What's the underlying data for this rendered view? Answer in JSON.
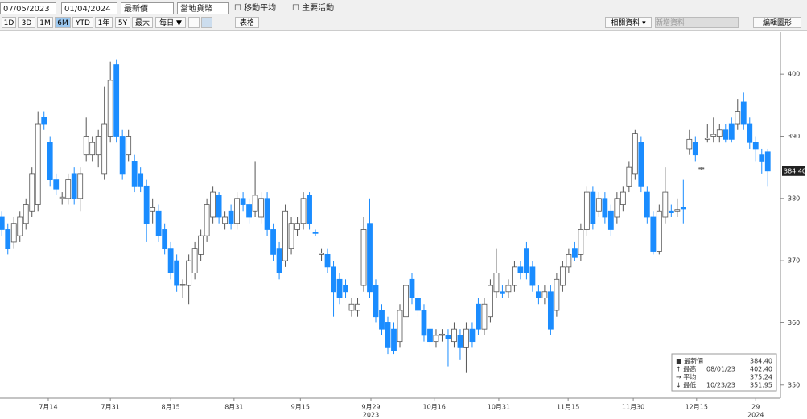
{
  "toolbar": {
    "start": "07/05/2023",
    "end": "01/04/2024",
    "price": "最新價",
    "currency": "當地貨幣",
    "moving_average": "移動平均",
    "events": "主要活動",
    "ranges": [
      "1D",
      "3D",
      "1M",
      "6M",
      "YTD",
      "1年",
      "5Y",
      "最大"
    ],
    "frequency": "每日 ▼",
    "table": "表格",
    "related": "相關資料 ▾",
    "add": "新增資料",
    "edit": "編輯圖形"
  },
  "chart_data": {
    "type": "candlestick",
    "up_color": "#ffffff",
    "down_color": "#1a8cff",
    "candles": [
      [
        377,
        378,
        374,
        375
      ],
      [
        375,
        376,
        371,
        372
      ],
      [
        373,
        377,
        372,
        376
      ],
      [
        374,
        378,
        373,
        377
      ],
      [
        376,
        380,
        375,
        379
      ],
      [
        378,
        385,
        377,
        384
      ],
      [
        379,
        394,
        378,
        392
      ],
      [
        393,
        394,
        391,
        392
      ],
      [
        389,
        390,
        382,
        383
      ],
      [
        383,
        384,
        380.5,
        381.5
      ],
      [
        380,
        381,
        379,
        380.2
      ],
      [
        380,
        384,
        379,
        383
      ],
      [
        384,
        385,
        379,
        380
      ],
      [
        380,
        385,
        378,
        384
      ],
      [
        387,
        393,
        386,
        390
      ],
      [
        387,
        390,
        386,
        389
      ],
      [
        387,
        391,
        385,
        390
      ],
      [
        384,
        398,
        383,
        392
      ],
      [
        390,
        402,
        389,
        399
      ],
      [
        401.5,
        402.4,
        389,
        390
      ],
      [
        390,
        391,
        383,
        384
      ],
      [
        387,
        391,
        386,
        390
      ],
      [
        386,
        387,
        381,
        382
      ],
      [
        384,
        385,
        381,
        382
      ],
      [
        382,
        383,
        373,
        376
      ],
      [
        378,
        380,
        376,
        378.5
      ],
      [
        378,
        379,
        373,
        374
      ],
      [
        375,
        376,
        371,
        372
      ],
      [
        372,
        373,
        367,
        368
      ],
      [
        370,
        371,
        365,
        366
      ],
      [
        366,
        367,
        364,
        366.2
      ],
      [
        366,
        371,
        363,
        370
      ],
      [
        368,
        373,
        367,
        372
      ],
      [
        371,
        375,
        370,
        374
      ],
      [
        374,
        380,
        373,
        379
      ],
      [
        377,
        382,
        376,
        381
      ],
      [
        380.5,
        381,
        376,
        377
      ],
      [
        376,
        378,
        375,
        377
      ],
      [
        378,
        379,
        375,
        376
      ],
      [
        376,
        381,
        375,
        380
      ],
      [
        380,
        381,
        378,
        379
      ],
      [
        379,
        380,
        376,
        377
      ],
      [
        378,
        386,
        377,
        380.5
      ],
      [
        377,
        381,
        376,
        380
      ],
      [
        380,
        381,
        374,
        375
      ],
      [
        375,
        376,
        370,
        371
      ],
      [
        372,
        373,
        367,
        368
      ],
      [
        370,
        379,
        369,
        378
      ],
      [
        372,
        377,
        371,
        376
      ],
      [
        375,
        377,
        374,
        376
      ],
      [
        376,
        381,
        375,
        380
      ],
      [
        380.5,
        381,
        375,
        376
      ],
      [
        374.5,
        375,
        374,
        374.4
      ],
      [
        371,
        372,
        370,
        371.2
      ],
      [
        371,
        372,
        368,
        369
      ],
      [
        369,
        370,
        361,
        365
      ],
      [
        367,
        368,
        363,
        364
      ],
      [
        366,
        367,
        364,
        365
      ],
      [
        362,
        364,
        361,
        363
      ],
      [
        362,
        364,
        361,
        363
      ],
      [
        366,
        377,
        365,
        375
      ],
      [
        376,
        380,
        364,
        365
      ],
      [
        366,
        367,
        360,
        361
      ],
      [
        362,
        363,
        358,
        359
      ],
      [
        360,
        361,
        355,
        356
      ],
      [
        359,
        360,
        355,
        355.5
      ],
      [
        357,
        363,
        356,
        362
      ],
      [
        361,
        367,
        360,
        366
      ],
      [
        367,
        368,
        363,
        364
      ],
      [
        364,
        365,
        361,
        362
      ],
      [
        362,
        363,
        357,
        358
      ],
      [
        359,
        360,
        356,
        357
      ],
      [
        357,
        359,
        356,
        358
      ],
      [
        358,
        359,
        357,
        358.2
      ],
      [
        358,
        359,
        353,
        357.5
      ],
      [
        357,
        360,
        356,
        359
      ],
      [
        358,
        359,
        354,
        356
      ],
      [
        356,
        360,
        351.95,
        359
      ],
      [
        359,
        360,
        356,
        357
      ],
      [
        363,
        364,
        358,
        359
      ],
      [
        359,
        364,
        358,
        363
      ],
      [
        361,
        367,
        360,
        366
      ],
      [
        365,
        372,
        364,
        368
      ],
      [
        365,
        366,
        364,
        364.8
      ],
      [
        365,
        367,
        364,
        366
      ],
      [
        366,
        370,
        365,
        369
      ],
      [
        369,
        370,
        367,
        368
      ],
      [
        372,
        373,
        367,
        368
      ],
      [
        369,
        370,
        365,
        366
      ],
      [
        365,
        366,
        363,
        364
      ],
      [
        364,
        366,
        363,
        365
      ],
      [
        365,
        366,
        358,
        359
      ],
      [
        362,
        368,
        361,
        367
      ],
      [
        366,
        370,
        365,
        369
      ],
      [
        369,
        372,
        368,
        371
      ],
      [
        372,
        373,
        370,
        370.5
      ],
      [
        371,
        376,
        370,
        375
      ],
      [
        375,
        382,
        374,
        381
      ],
      [
        381,
        382,
        375,
        376
      ],
      [
        378,
        381,
        377,
        380
      ],
      [
        380,
        381,
        376,
        377
      ],
      [
        378,
        379,
        374,
        375
      ],
      [
        377,
        381,
        376,
        380
      ],
      [
        379,
        382,
        378,
        381
      ],
      [
        382,
        386,
        381,
        385
      ],
      [
        384,
        391,
        383,
        390.5
      ],
      [
        389,
        390,
        381,
        382
      ],
      [
        381,
        382,
        376,
        377
      ],
      [
        377,
        378,
        371,
        371.5
      ],
      [
        371.5,
        379,
        371,
        378
      ],
      [
        377,
        385,
        376,
        381
      ],
      [
        378,
        379,
        377,
        377.7
      ],
      [
        378,
        380,
        377,
        378.2
      ],
      [
        378.5,
        383,
        376,
        378.3
      ],
      [
        388,
        391,
        387,
        389.5
      ],
      [
        389,
        390,
        386,
        387
      ],
      [
        384.8,
        385,
        384.6,
        384.9
      ],
      [
        389.5,
        392,
        389,
        389.7
      ],
      [
        390,
        393,
        389,
        390.3
      ],
      [
        390,
        392,
        389,
        391
      ],
      [
        391,
        392,
        389,
        389.5
      ],
      [
        392,
        393,
        389,
        389.5
      ],
      [
        392,
        396,
        391,
        394
      ],
      [
        395.5,
        397,
        391,
        392
      ],
      [
        392,
        393,
        388,
        389
      ],
      [
        389,
        390,
        386,
        388
      ],
      [
        387,
        388,
        384,
        386
      ],
      [
        387.5,
        388,
        382,
        384.4
      ]
    ],
    "xlim": [
      -0.3,
      129.1
    ],
    "xticks": [
      {
        "value": 7.7,
        "label": "7月14"
      },
      {
        "value": 18,
        "label": "7月31"
      },
      {
        "value": 28,
        "label": "8月15"
      },
      {
        "value": 38.5,
        "label": "8月31"
      },
      {
        "value": 49.5,
        "label": "9月15"
      },
      {
        "value": 61.2,
        "label": "9月29"
      },
      {
        "value": 71.7,
        "label": "10月16"
      },
      {
        "value": 82.4,
        "label": "10月31"
      },
      {
        "value": 93.9,
        "label": "11月15"
      },
      {
        "value": 104.7,
        "label": "11月30"
      },
      {
        "value": 115.2,
        "label": "12月15"
      },
      {
        "value": 125,
        "label": "29"
      }
    ],
    "year_labels": [
      {
        "value": 61.2,
        "label": "2023"
      },
      {
        "value": 125,
        "label": "2024"
      }
    ],
    "ylim": [
      347.9,
      406.1
    ],
    "yticks": [
      350,
      360,
      370,
      380,
      390,
      400
    ],
    "last_price": {
      "value": 384.4,
      "label": "384.40"
    },
    "legend": [
      [
        "■ 最新價",
        "",
        "384.40"
      ],
      [
        "↑ 最高",
        "08/01/23",
        "402.40"
      ],
      [
        "→ 平均",
        "",
        "375.24"
      ],
      [
        "↓ 最低",
        "10/23/23",
        "351.95"
      ]
    ]
  }
}
